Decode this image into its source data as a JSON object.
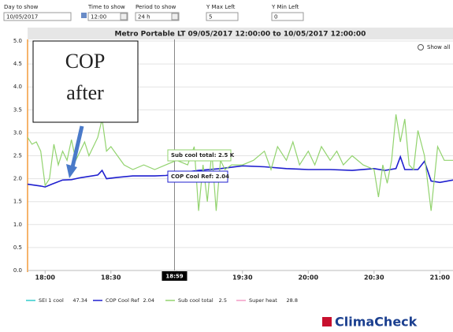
{
  "controls": [
    {
      "label": "Day to show",
      "value": "10/05/2017"
    },
    {
      "label": "Time to show",
      "value": "12:00"
    },
    {
      "label": "Period to show",
      "value": "24 h"
    },
    {
      "label": "Y Max Left",
      "value": "5"
    },
    {
      "label": "Y Min Left",
      "value": "0"
    }
  ],
  "show_all": "Show all",
  "brand": "ClimaCheck",
  "chart_data": {
    "type": "line",
    "title": "Metro Portable LT 09/05/2017 12:00:00 to 10/05/2017 12:00:00",
    "xlim": [
      "17:52",
      "21:06"
    ],
    "xticks": [
      "18:00",
      "18:30",
      "19:00",
      "19:30",
      "20:00",
      "20:30",
      "21:00"
    ],
    "ylim": [
      0,
      5
    ],
    "yticks": [
      {
        "value": 0,
        "label": "0.0"
      },
      0.5,
      {
        "value": 1,
        "label": "1.0"
      },
      1.5,
      {
        "value": 2,
        "label": "2.0"
      },
      2.5,
      {
        "value": 3,
        "label": "3.0"
      },
      3.5,
      {
        "value": 4,
        "label": "4.0"
      },
      4.5,
      {
        "value": 5,
        "label": "5.0"
      }
    ],
    "grid": true,
    "cursor": "18:59",
    "series": [
      {
        "name": "SEI 1 cool",
        "color": "#33cccc",
        "current": 47.34
      },
      {
        "name": "COP Cool Ref",
        "color": "#1f1fcf",
        "current": 2.04,
        "x": [
          "17:52",
          "17:58",
          "18:00",
          "18:03",
          "18:08",
          "18:12",
          "18:16",
          "18:20",
          "18:24",
          "18:26",
          "18:28",
          "18:33",
          "18:40",
          "18:50",
          "18:55",
          "19:00",
          "19:05",
          "19:10",
          "19:20",
          "19:30",
          "19:40",
          "19:50",
          "20:00",
          "20:10",
          "20:20",
          "20:30",
          "20:35",
          "20:40",
          "20:42",
          "20:44",
          "20:50",
          "20:53",
          "20:56",
          "21:00",
          "21:06"
        ],
        "values": [
          1.88,
          1.84,
          1.82,
          1.88,
          1.97,
          1.98,
          2.02,
          2.05,
          2.08,
          2.18,
          2.0,
          2.03,
          2.06,
          2.06,
          2.07,
          2.1,
          2.15,
          2.18,
          2.22,
          2.28,
          2.26,
          2.22,
          2.2,
          2.2,
          2.18,
          2.22,
          2.18,
          2.22,
          2.48,
          2.2,
          2.2,
          2.38,
          1.95,
          1.92,
          1.97
        ]
      },
      {
        "name": "Sub cool total",
        "color": "#92d36e",
        "current": 2.5,
        "x": [
          "17:52",
          "17:54",
          "17:56",
          "17:58",
          "18:00",
          "18:02",
          "18:04",
          "18:06",
          "18:08",
          "18:10",
          "18:12",
          "18:14",
          "18:16",
          "18:18",
          "18:20",
          "18:22",
          "18:24",
          "18:26",
          "18:28",
          "18:30",
          "18:33",
          "18:36",
          "18:40",
          "18:45",
          "18:50",
          "18:55",
          "19:00",
          "19:05",
          "19:08",
          "19:10",
          "19:12",
          "19:14",
          "19:16",
          "19:18",
          "19:20",
          "19:22",
          "19:25",
          "19:30",
          "19:35",
          "19:40",
          "19:43",
          "19:46",
          "19:50",
          "19:53",
          "19:56",
          "20:00",
          "20:03",
          "20:06",
          "20:10",
          "20:13",
          "20:16",
          "20:20",
          "20:25",
          "20:30",
          "20:32",
          "20:34",
          "20:36",
          "20:38",
          "20:40",
          "20:42",
          "20:44",
          "20:46",
          "20:48",
          "20:50",
          "20:53",
          "20:56",
          "20:59",
          "21:02",
          "21:06"
        ],
        "values": [
          2.9,
          2.75,
          2.8,
          2.6,
          1.85,
          2.0,
          2.75,
          2.3,
          2.6,
          2.4,
          2.85,
          2.4,
          2.6,
          2.8,
          2.5,
          2.7,
          2.9,
          3.3,
          2.6,
          2.7,
          2.5,
          2.3,
          2.2,
          2.3,
          2.2,
          2.3,
          2.4,
          2.3,
          2.7,
          1.3,
          2.3,
          1.5,
          2.6,
          1.3,
          2.4,
          2.2,
          2.3,
          2.3,
          2.4,
          2.6,
          2.2,
          2.7,
          2.4,
          2.8,
          2.3,
          2.6,
          2.3,
          2.7,
          2.4,
          2.6,
          2.3,
          2.5,
          2.3,
          2.2,
          1.6,
          2.3,
          1.9,
          2.4,
          3.4,
          2.8,
          3.3,
          2.3,
          2.2,
          3.05,
          2.5,
          1.3,
          2.7,
          2.4,
          2.4
        ]
      },
      {
        "name": "Super heat",
        "color": "#f29cc5",
        "current": 28.8
      }
    ],
    "annotations": [
      "COP",
      "after",
      "Sub cool total: 2.5 K",
      "COP Cool Ref: 2.04"
    ]
  }
}
